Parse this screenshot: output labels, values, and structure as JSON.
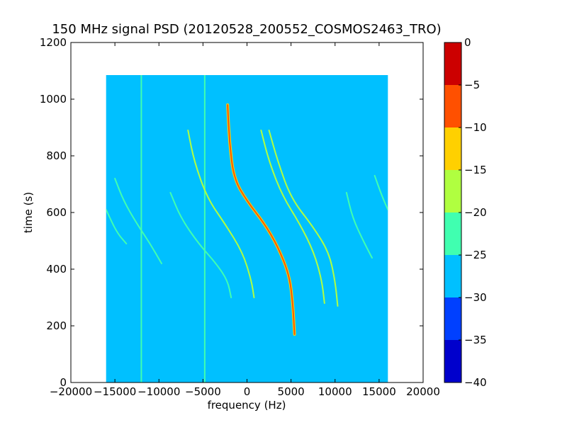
{
  "chart_data": {
    "type": "heatmap",
    "title": "150 MHz signal PSD (20120528_200552_COSMOS2463_TRO)",
    "xlabel": "frequency (Hz)",
    "ylabel": "time (s)",
    "xlim": [
      -20000,
      20000
    ],
    "ylim": [
      0,
      1200
    ],
    "xticks": [
      -20000,
      -15000,
      -10000,
      -5000,
      0,
      5000,
      10000,
      15000,
      20000
    ],
    "xtick_labels": [
      "−20000",
      "−15000",
      "−10000",
      "−5000",
      "0",
      "5000",
      "10000",
      "15000",
      "20000"
    ],
    "yticks": [
      0,
      200,
      400,
      600,
      800,
      1000,
      1200
    ],
    "ytick_labels": [
      "0",
      "200",
      "400",
      "600",
      "800",
      "1000",
      "1200"
    ],
    "data_extent": {
      "x": [
        -16000,
        16000
      ],
      "y": [
        0,
        1085
      ]
    },
    "colorbar": {
      "range": [
        -40,
        0
      ],
      "ticks": [
        0,
        -5,
        -10,
        -15,
        -20,
        -25,
        -30,
        -35,
        -40
      ],
      "tick_labels": [
        "0",
        "−5",
        "−10",
        "−15",
        "−20",
        "−25",
        "−30",
        "−35",
        "−40"
      ],
      "levels": [
        {
          "from": -40,
          "to": -35,
          "color": "#0000cc"
        },
        {
          "from": -35,
          "to": -30,
          "color": "#0040ff"
        },
        {
          "from": -30,
          "to": -25,
          "color": "#00c0ff"
        },
        {
          "from": -25,
          "to": -20,
          "color": "#40ffb0"
        },
        {
          "from": -20,
          "to": -15,
          "color": "#b0ff40"
        },
        {
          "from": -15,
          "to": -10,
          "color": "#ffd000"
        },
        {
          "from": -10,
          "to": -5,
          "color": "#ff5000"
        },
        {
          "from": -5,
          "to": 0,
          "color": "#cc0000"
        }
      ]
    },
    "background_level": -28,
    "vertical_lines": [
      {
        "x": -12000,
        "level": -22
      },
      {
        "x": -4800,
        "level": -22
      }
    ],
    "traces": [
      {
        "name_hidden": true,
        "level": -8,
        "points": [
          [
            -2200,
            980
          ],
          [
            -2000,
            850
          ],
          [
            -1500,
            720
          ],
          [
            0,
            640
          ],
          [
            2000,
            560
          ],
          [
            3500,
            480
          ],
          [
            4800,
            380
          ],
          [
            5200,
            280
          ],
          [
            5400,
            170
          ]
        ]
      },
      {
        "level": -20,
        "points": [
          [
            -6700,
            890
          ],
          [
            -6000,
            780
          ],
          [
            -4500,
            650
          ],
          [
            -2500,
            560
          ],
          [
            -500,
            460
          ],
          [
            500,
            360
          ],
          [
            800,
            300
          ]
        ]
      },
      {
        "level": -20,
        "points": [
          [
            1600,
            890
          ],
          [
            2500,
            780
          ],
          [
            4000,
            660
          ],
          [
            6000,
            560
          ],
          [
            7600,
            460
          ],
          [
            8500,
            360
          ],
          [
            8800,
            280
          ]
        ]
      },
      {
        "level": -20,
        "points": [
          [
            2500,
            890
          ],
          [
            3500,
            780
          ],
          [
            5000,
            650
          ],
          [
            7500,
            550
          ],
          [
            9300,
            460
          ],
          [
            10000,
            360
          ],
          [
            10300,
            270
          ]
        ]
      },
      {
        "level": -22,
        "points": [
          [
            -8700,
            670
          ],
          [
            -7500,
            580
          ],
          [
            -5500,
            490
          ],
          [
            -3500,
            420
          ],
          [
            -2200,
            360
          ],
          [
            -1800,
            300
          ]
        ]
      },
      {
        "level": -22,
        "points": [
          [
            -15000,
            720
          ],
          [
            -14000,
            640
          ],
          [
            -12500,
            560
          ],
          [
            -11000,
            490
          ],
          [
            -9700,
            420
          ]
        ]
      },
      {
        "level": -22,
        "points": [
          [
            -16000,
            610
          ],
          [
            -14800,
            530
          ],
          [
            -13700,
            490
          ]
        ]
      },
      {
        "level": -22,
        "points": [
          [
            11300,
            670
          ],
          [
            12000,
            580
          ],
          [
            13200,
            500
          ],
          [
            14200,
            440
          ]
        ]
      },
      {
        "level": -22,
        "points": [
          [
            14500,
            730
          ],
          [
            15300,
            660
          ],
          [
            16000,
            610
          ]
        ]
      }
    ],
    "grid": false,
    "legend": "none"
  }
}
